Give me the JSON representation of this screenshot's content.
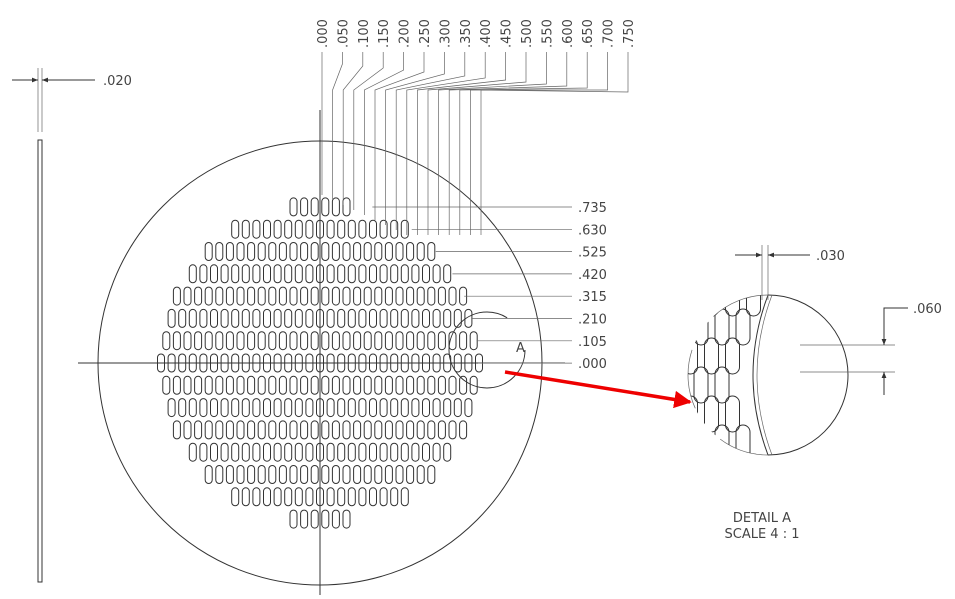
{
  "main_view": {
    "thickness_dim": ".020",
    "column_labels": [
      ".000",
      ".050",
      ".100",
      ".150",
      ".200",
      ".250",
      ".300",
      ".350",
      ".400",
      ".450",
      ".500",
      ".550",
      ".600",
      ".650",
      ".700",
      ".750"
    ],
    "row_labels": [
      ".735",
      ".630",
      ".525",
      ".420",
      ".315",
      ".210",
      ".105",
      ".000"
    ],
    "detail_callout": "A"
  },
  "detail_view": {
    "pitch_dim": ".030",
    "slot_dim": ".060",
    "title": "DETAIL A",
    "scale": "SCALE 4 : 1"
  }
}
